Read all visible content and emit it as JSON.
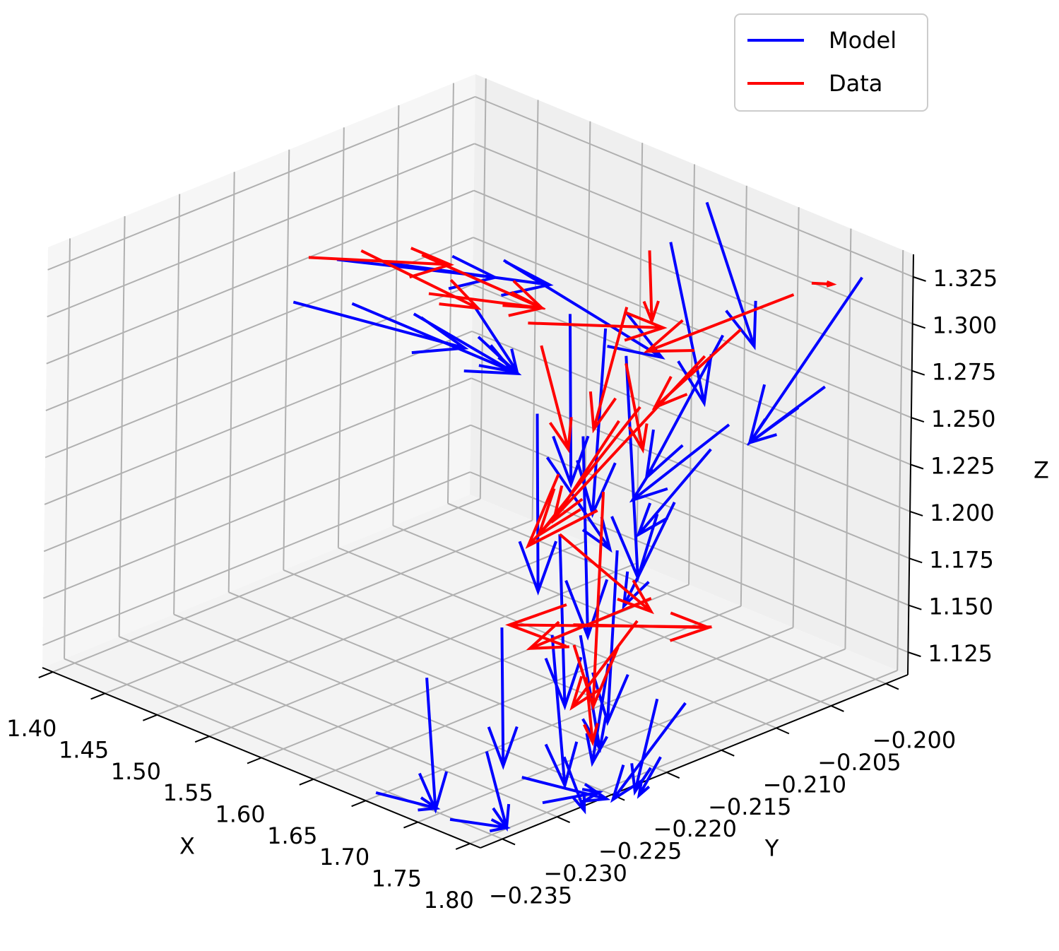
{
  "chart_data": {
    "type": "quiver3d",
    "xlabel": "X",
    "ylabel": "Y",
    "zlabel": "Z",
    "xlim": [
      1.39,
      1.81
    ],
    "ylim": [
      -0.237,
      -0.198
    ],
    "zlim": [
      1.113,
      1.337
    ],
    "xticks": [
      {
        "value": 1.4,
        "label": "1.40"
      },
      {
        "value": 1.45,
        "label": "1.45"
      },
      {
        "value": 1.5,
        "label": "1.50"
      },
      {
        "value": 1.55,
        "label": "1.55"
      },
      {
        "value": 1.6,
        "label": "1.60"
      },
      {
        "value": 1.65,
        "label": "1.65"
      },
      {
        "value": 1.7,
        "label": "1.70"
      },
      {
        "value": 1.75,
        "label": "1.75"
      },
      {
        "value": 1.8,
        "label": "1.80"
      }
    ],
    "yticks": [
      {
        "value": -0.235,
        "label": "−0.235"
      },
      {
        "value": -0.23,
        "label": "−0.230"
      },
      {
        "value": -0.225,
        "label": "−0.225"
      },
      {
        "value": -0.22,
        "label": "−0.220"
      },
      {
        "value": -0.215,
        "label": "−0.215"
      },
      {
        "value": -0.21,
        "label": "−0.210"
      },
      {
        "value": -0.205,
        "label": "−0.205"
      },
      {
        "value": -0.2,
        "label": "−0.200"
      }
    ],
    "zticks": [
      1.125,
      {
        "value": 1.15,
        "label": "1.150"
      },
      1.175,
      {
        "value": 1.2,
        "label": "1.200"
      },
      1.225,
      {
        "value": 1.25,
        "label": "1.250"
      },
      1.275,
      {
        "value": 1.3,
        "label": "1.300"
      },
      1.325
    ],
    "grid": true,
    "legend": "upper right",
    "series": [
      {
        "name": "Model",
        "color": "#0000ff",
        "x": [
          1.463,
          1.51,
          1.422,
          1.478,
          1.537,
          1.622,
          1.595,
          1.686,
          1.781,
          1.815,
          1.964,
          1.93,
          1.839,
          1.656,
          1.72,
          1.74,
          1.666,
          1.625,
          1.554,
          1.507,
          1.612,
          1.578,
          1.801,
          1.774,
          1.686,
          1.778,
          1.646,
          1.673,
          1.7,
          1.788,
          1.822,
          1.666,
          1.832,
          1.727,
          1.7,
          1.679,
          1.734
        ],
        "y": [
          -0.2175,
          -0.2175,
          -0.2175,
          -0.2175,
          -0.2175,
          -0.2175,
          -0.2175,
          -0.2175,
          -0.2175,
          -0.2175,
          -0.2175,
          -0.2175,
          -0.2175,
          -0.2175,
          -0.2175,
          -0.2175,
          -0.2175,
          -0.2175,
          -0.2175,
          -0.2175,
          -0.2175,
          -0.2175,
          -0.2175,
          -0.2175,
          -0.2175,
          -0.2175,
          -0.2175,
          -0.2175,
          -0.2175,
          -0.2175,
          -0.2175,
          -0.2175,
          -0.2175,
          -0.2175,
          -0.2175,
          -0.2175,
          -0.2175
        ],
        "z": [
          1.301,
          1.31,
          1.269,
          1.281,
          1.289,
          1.337,
          1.306,
          1.323,
          1.383,
          1.412,
          1.406,
          1.34,
          1.299,
          1.263,
          1.323,
          1.313,
          1.242,
          1.142,
          1.099,
          1.027,
          1.073,
          1.029,
          1.142,
          1.138,
          1.087,
          1.108,
          1.067,
          1.149,
          1.155,
          1.246,
          1.282,
          1.058,
          1.345,
          1.146,
          1.261,
          1.204,
          1.208
        ],
        "u": [
          0.151,
          0.156,
          0.164,
          0.159,
          0.095,
          0.152,
          0.041,
          0.003,
          0.034,
          0.047,
          -0.105,
          -0.071,
          -0.091,
          0.003,
          -0.01,
          0.014,
          0.061,
          0.003,
          0.01,
          0.058,
          0.02,
          0.054,
          -0.068,
          -0.02,
          0.02,
          -0.02,
          0.081,
          0.014,
          0.02,
          -0.047,
          -0.068,
          0.054,
          -0.071,
          -0.014,
          0.007,
          0.007,
          -0.007
        ],
        "v": [
          0,
          0,
          0,
          0,
          0,
          0,
          0,
          0,
          0,
          0,
          0,
          0,
          0,
          0,
          0,
          0,
          0,
          0,
          0,
          0,
          0,
          0,
          0,
          0,
          0,
          0,
          0,
          0,
          0,
          0,
          0,
          0,
          0,
          0,
          0,
          0,
          0
        ],
        "w": [
          0.025,
          0.024,
          0.013,
          -0.001,
          -0.009,
          -0.017,
          -0.025,
          -0.09,
          -0.078,
          -0.066,
          -0.112,
          -0.046,
          -0.061,
          -0.094,
          -0.101,
          -0.115,
          -0.035,
          -0.073,
          -0.068,
          0.005,
          -0.036,
          0.008,
          -0.067,
          -0.054,
          -0.024,
          -0.025,
          0.007,
          -0.077,
          -0.056,
          -0.066,
          -0.061,
          0.018,
          -0.092,
          -0.056,
          -0.105,
          -0.09,
          -0.093
        ]
      },
      {
        "name": "Data",
        "color": "#ff0000",
        "x": [
          1.436,
          1.486,
          1.544,
          1.551,
          1.646,
          1.899,
          1.849,
          1.74,
          1.761,
          1.659,
          1.74,
          1.815,
          1.754,
          1.825,
          1.693,
          1.767,
          1.72,
          1.754,
          1.679,
          1.734,
          1.916,
          1.706
        ],
        "y": [
          -0.2175,
          -0.2175,
          -0.2175,
          -0.2175,
          -0.2175,
          -0.2175,
          -0.2175,
          -0.2175,
          -0.2175,
          -0.2175,
          -0.2175,
          -0.2175,
          -0.2175,
          -0.2175,
          -0.2175,
          -0.2175,
          -0.2175,
          -0.2175,
          -0.2175,
          -0.2175,
          -0.2175,
          -0.2175
        ],
        "z": [
          1.296,
          1.311,
          1.322,
          1.303,
          1.309,
          1.382,
          1.352,
          1.339,
          1.374,
          1.3,
          1.309,
          1.33,
          1.289,
          1.188,
          1.159,
          1.19,
          1.236,
          1.175,
          1.204,
          1.277,
          1.392,
          1.134
        ],
        "u": [
          0.135,
          0.112,
          0.115,
          0.108,
          0.129,
          -0.139,
          -0.081,
          -0.03,
          0.003,
          0.027,
          0.017,
          -0.166,
          -0.095,
          -0.193,
          0.129,
          -0.115,
          -0.007,
          -0.061,
          0.088,
          -0.061,
          0.02,
          0.007
        ],
        "v": [
          0,
          0,
          0,
          0,
          0,
          0,
          0,
          0,
          0,
          0,
          0,
          0,
          0,
          0,
          0,
          0,
          0,
          0,
          0,
          0,
          0,
          0
        ],
        "w": [
          0.027,
          -0.005,
          -0.002,
          0.017,
          0.027,
          -0.062,
          -0.06,
          -0.072,
          -0.037,
          -0.049,
          -0.042,
          -0.139,
          -0.09,
          -0.043,
          0.028,
          -0.053,
          -0.116,
          -0.06,
          -0.021,
          -0.067,
          0.004,
          -0.033
        ]
      }
    ]
  }
}
